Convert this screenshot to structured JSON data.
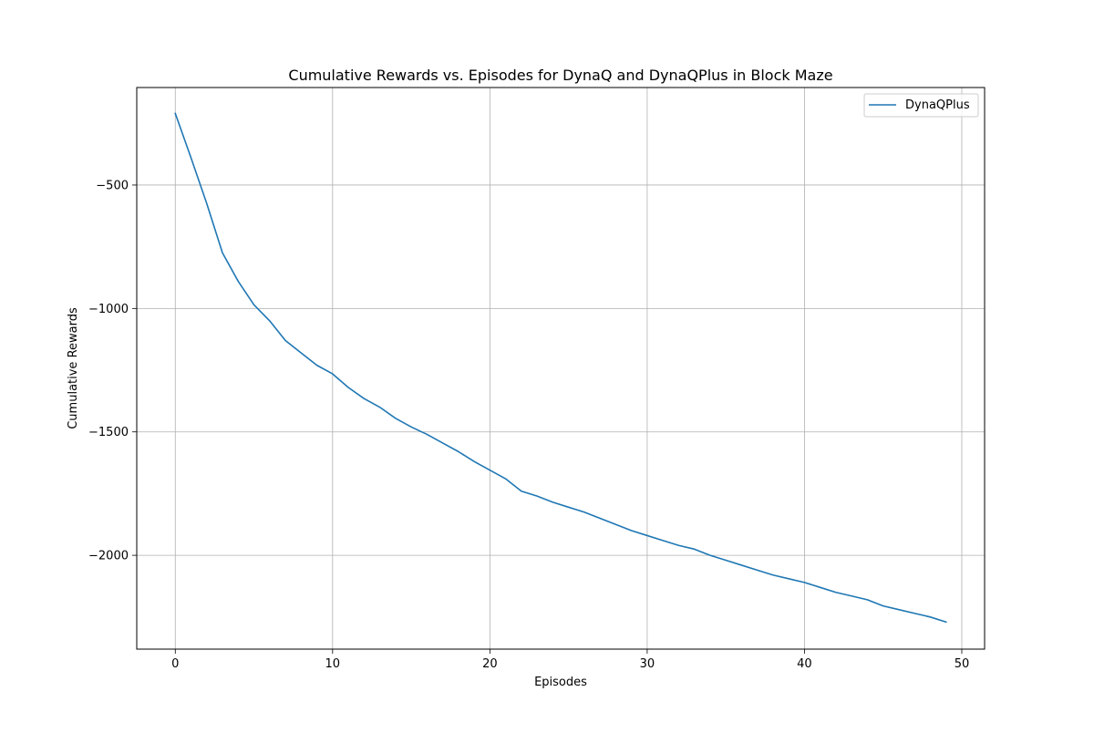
{
  "chart_data": {
    "type": "line",
    "title": "Cumulative Rewards vs. Episodes for DynaQ and DynaQPlus in Block Maze",
    "xlabel": "Episodes",
    "ylabel": "Cumulative Rewards",
    "xlim": [
      -2.45,
      51.45
    ],
    "ylim": [
      -2380,
      -105
    ],
    "xticks": [
      0,
      10,
      20,
      30,
      40,
      50
    ],
    "yticks": [
      -500,
      -1000,
      -1500,
      -2000
    ],
    "xtick_labels": [
      "0",
      "10",
      "20",
      "30",
      "40",
      "50"
    ],
    "ytick_labels": [
      "−500",
      "−1000",
      "−1500",
      "−2000"
    ],
    "grid": true,
    "legend": {
      "location": "upper right",
      "entries": [
        "DynaQPlus"
      ]
    },
    "series": [
      {
        "name": "DynaQPlus",
        "color": "#1f77b4",
        "x": [
          0,
          1,
          2,
          3,
          4,
          5,
          6,
          7,
          8,
          9,
          10,
          11,
          12,
          13,
          14,
          15,
          16,
          17,
          18,
          19,
          20,
          21,
          22,
          23,
          24,
          25,
          26,
          27,
          28,
          29,
          30,
          31,
          32,
          33,
          34,
          35,
          36,
          37,
          38,
          39,
          40,
          41,
          42,
          43,
          44,
          45,
          46,
          47,
          48,
          49
        ],
        "y": [
          -210,
          -390,
          -575,
          -775,
          -890,
          -985,
          -1050,
          -1130,
          -1180,
          -1230,
          -1265,
          -1320,
          -1365,
          -1400,
          -1445,
          -1480,
          -1510,
          -1545,
          -1580,
          -1620,
          -1655,
          -1690,
          -1740,
          -1760,
          -1785,
          -1805,
          -1825,
          -1850,
          -1875,
          -1900,
          -1920,
          -1940,
          -1960,
          -1975,
          -2000,
          -2020,
          -2040,
          -2060,
          -2080,
          -2095,
          -2110,
          -2130,
          -2150,
          -2165,
          -2180,
          -2205,
          -2220,
          -2235,
          -2250,
          -2270
        ]
      }
    ]
  }
}
